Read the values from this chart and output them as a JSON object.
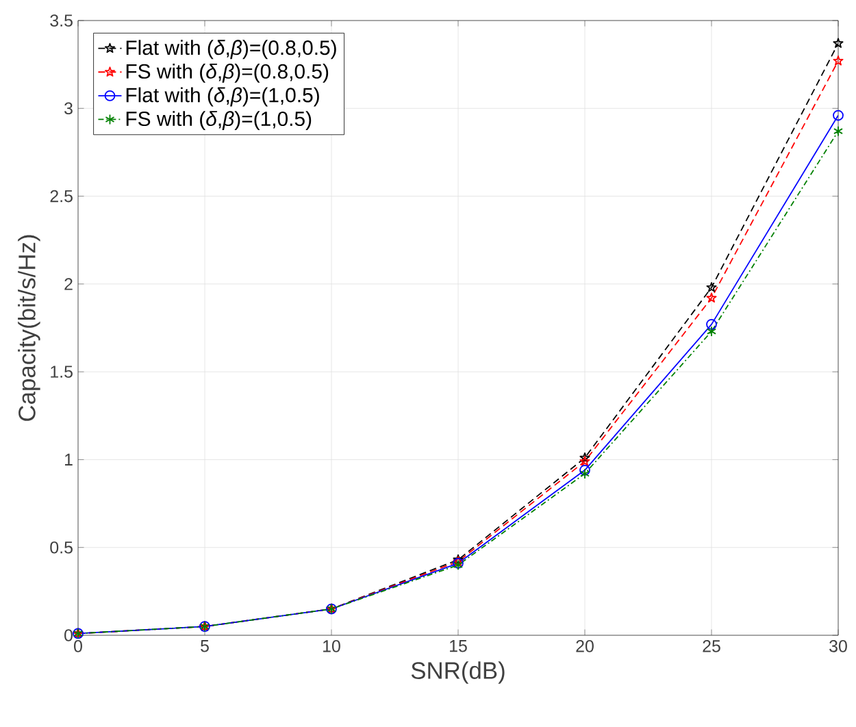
{
  "chart_data": {
    "type": "line",
    "xlabel": "SNR(dB)",
    "ylabel": "Capacity(bit/s/Hz)",
    "x": [
      0,
      5,
      10,
      15,
      20,
      25,
      30
    ],
    "series": [
      {
        "name": "Flat with (*δ*,*β*)=(0.8,0.5)",
        "color": "#000000",
        "marker": "star",
        "line_style": "dashed",
        "values": [
          0.01,
          0.05,
          0.15,
          0.43,
          1.01,
          1.98,
          3.37
        ]
      },
      {
        "name": "FS with (*δ*,*β*)=(0.8,0.5)",
        "color": "#ff0000",
        "marker": "star",
        "line_style": "dashed",
        "values": [
          0.01,
          0.05,
          0.15,
          0.42,
          0.99,
          1.92,
          3.27
        ]
      },
      {
        "name": "Flat with (*δ*,*β*)=(1,0.5)",
        "color": "#0000ff",
        "marker": "circle",
        "line_style": "solid",
        "values": [
          0.01,
          0.05,
          0.15,
          0.41,
          0.94,
          1.77,
          2.96
        ]
      },
      {
        "name": "FS with (*δ*,*β*)=(1,0.5)",
        "color": "#008000",
        "marker": "cross",
        "line_style": "dotted",
        "values": [
          0.01,
          0.05,
          0.15,
          0.4,
          0.92,
          1.73,
          2.87
        ]
      }
    ],
    "xlim": [
      0,
      30
    ],
    "ylim": [
      0,
      3.5
    ],
    "xticks": [
      0,
      5,
      10,
      15,
      20,
      25,
      30
    ],
    "yticks": [
      0,
      0.5,
      1,
      1.5,
      2,
      2.5,
      3,
      3.5
    ],
    "grid": true,
    "legend": "top left"
  }
}
